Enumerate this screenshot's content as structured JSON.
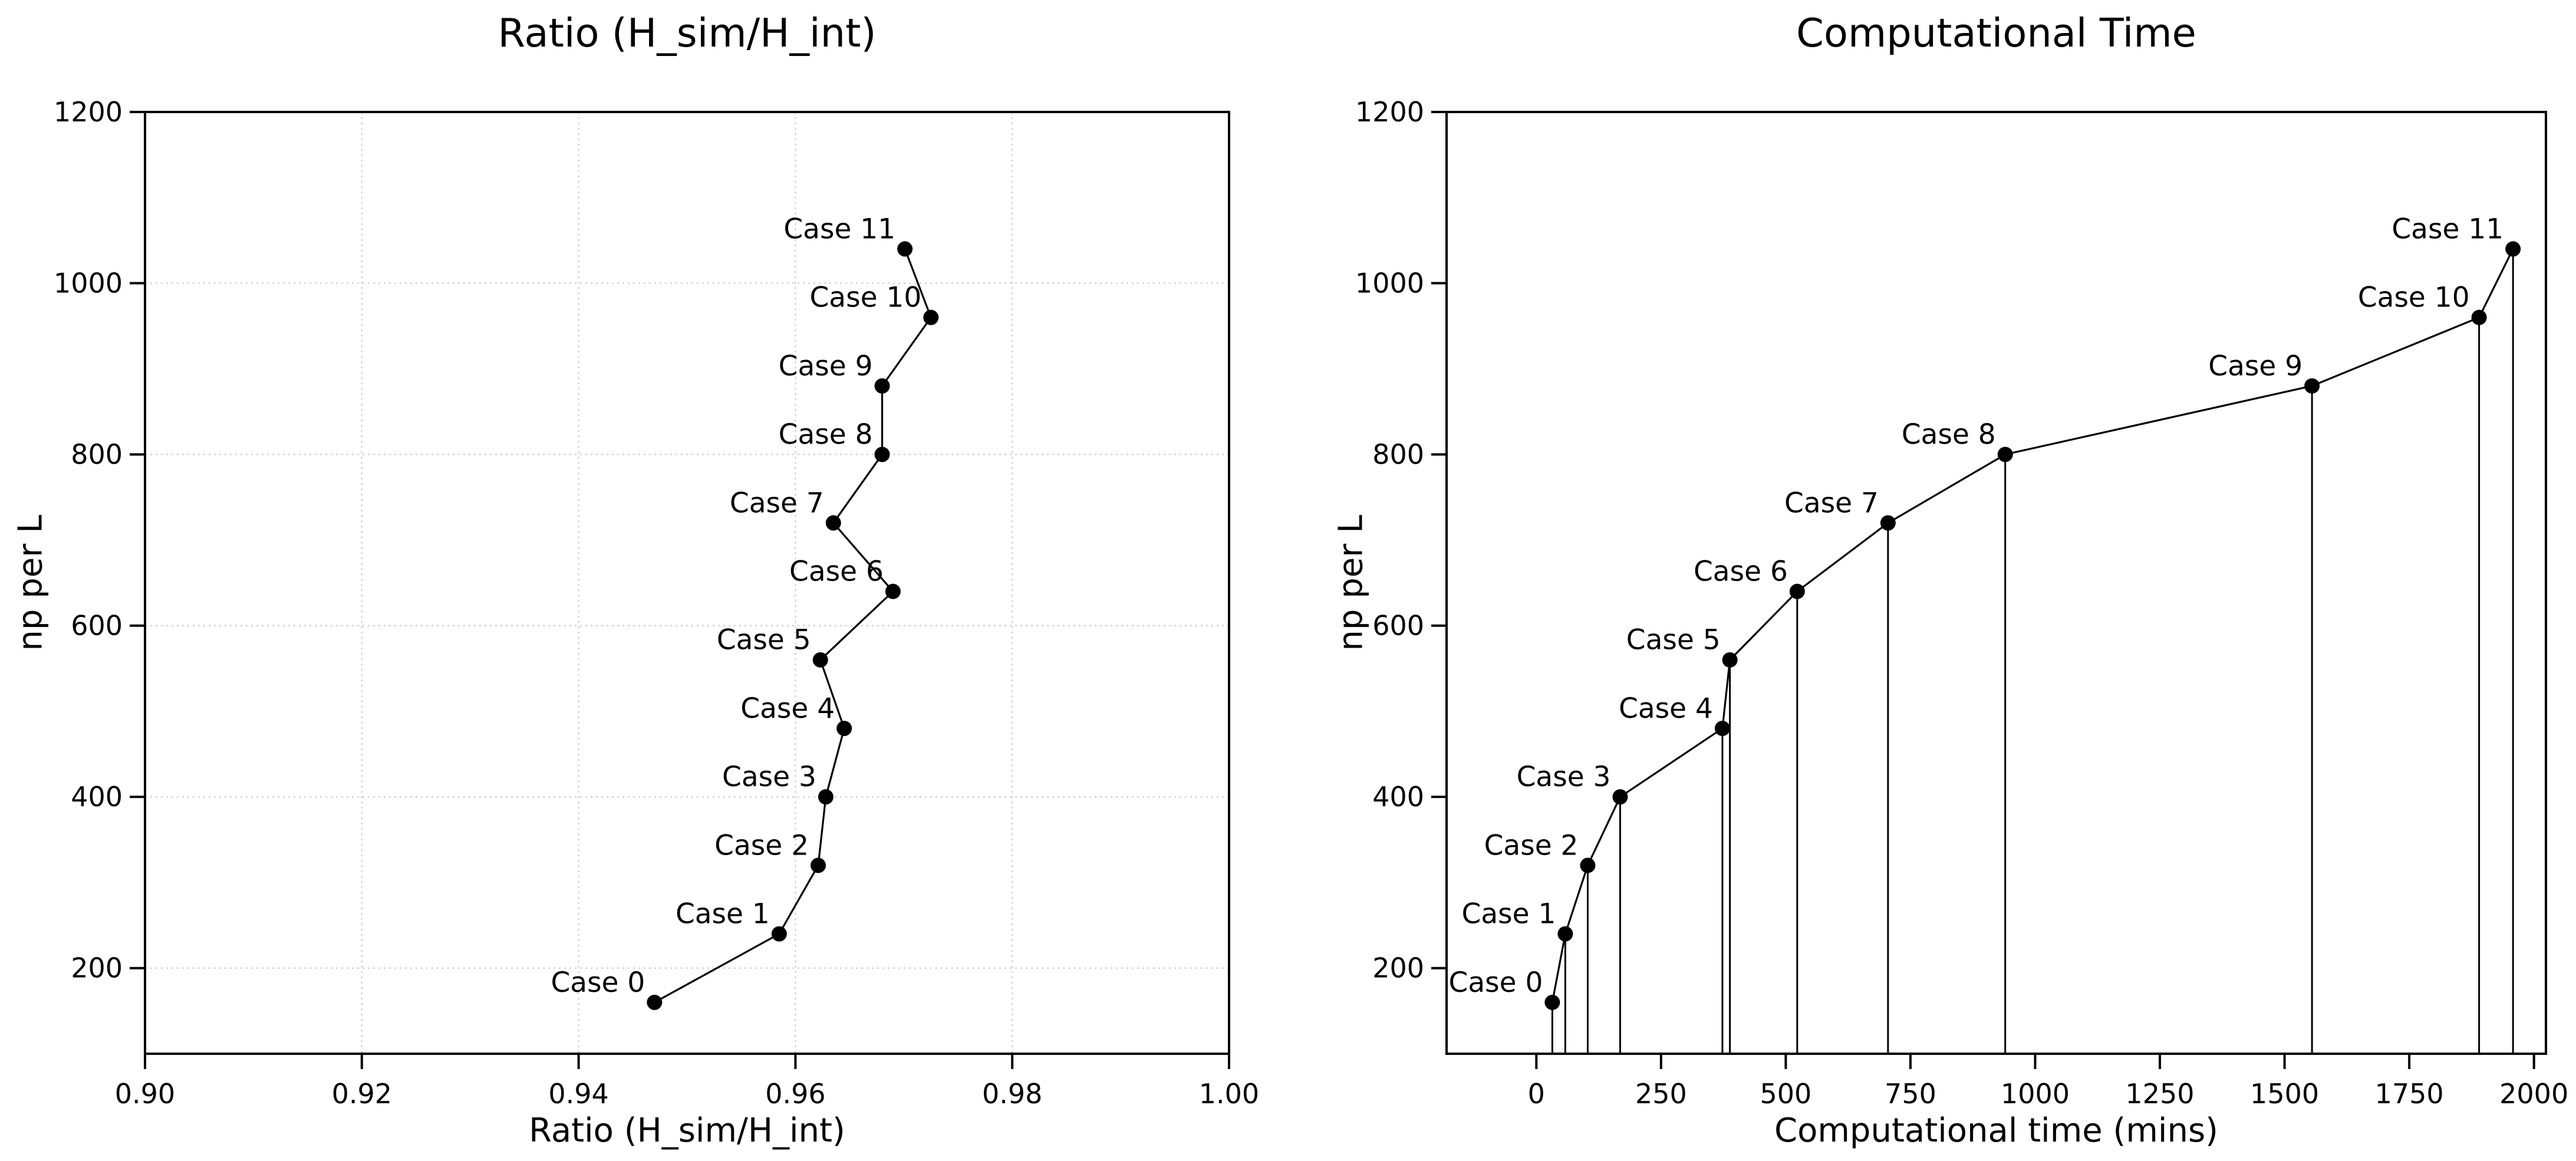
{
  "figure": {
    "background": "#ffffff",
    "text_color": "#000000",
    "grid_color": "#c8c8c8",
    "line_color": "#000000",
    "marker_color": "#000000"
  },
  "chart_data": [
    {
      "type": "line",
      "title": "Ratio (H_sim/H_int)",
      "xlabel": "Ratio (H_sim/H_int)",
      "ylabel": "np per L",
      "legend": "none",
      "grid": true,
      "stems": false,
      "xlim": [
        0.9,
        1.0
      ],
      "ylim": [
        100,
        1200
      ],
      "xticks": [
        0.9,
        0.92,
        0.94,
        0.96,
        0.98,
        1.0
      ],
      "xtick_labels": [
        "0.90",
        "0.92",
        "0.94",
        "0.96",
        "0.98",
        "1.00"
      ],
      "yticks": [
        200,
        400,
        600,
        800,
        1000,
        1200
      ],
      "ytick_labels": [
        "200",
        "400",
        "600",
        "800",
        "1000",
        "1200"
      ],
      "point_labels": [
        "Case 0",
        "Case 1",
        "Case 2",
        "Case 3",
        "Case 4",
        "Case 5",
        "Case 6",
        "Case 7",
        "Case 8",
        "Case 9",
        "Case 10",
        "Case 11"
      ],
      "x": [
        0.947,
        0.9585,
        0.9621,
        0.9628,
        0.9645,
        0.9623,
        0.969,
        0.9635,
        0.968,
        0.968,
        0.9725,
        0.9701
      ],
      "y": [
        160,
        240,
        320,
        400,
        480,
        560,
        640,
        720,
        800,
        880,
        960,
        1040
      ]
    },
    {
      "type": "line",
      "title": "Computational Time",
      "xlabel": "Computational time (mins)",
      "ylabel": "np per L",
      "legend": "none",
      "grid": false,
      "stems": true,
      "xlim": [
        -180,
        2024
      ],
      "ylim": [
        100,
        1200
      ],
      "xticks": [
        0,
        250,
        500,
        750,
        1000,
        1250,
        1500,
        1750,
        2000
      ],
      "xtick_labels": [
        "0",
        "250",
        "500",
        "750",
        "1000",
        "1250",
        "1500",
        "1750",
        "2000"
      ],
      "yticks": [
        200,
        400,
        600,
        800,
        1000,
        1200
      ],
      "ytick_labels": [
        "200",
        "400",
        "600",
        "800",
        "1000",
        "1200"
      ],
      "point_labels": [
        "Case 0",
        "Case 1",
        "Case 2",
        "Case 3",
        "Case 4",
        "Case 5",
        "Case 6",
        "Case 7",
        "Case 8",
        "Case 9",
        "Case 10",
        "Case 11"
      ],
      "x": [
        32,
        58,
        103,
        168,
        373,
        388,
        523,
        705,
        940,
        1555,
        1890,
        1958
      ],
      "y": [
        160,
        240,
        320,
        400,
        480,
        560,
        640,
        720,
        800,
        880,
        960,
        1040
      ]
    }
  ]
}
